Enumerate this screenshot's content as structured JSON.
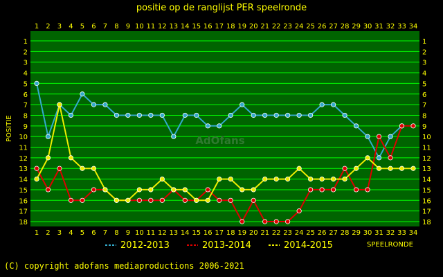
{
  "title": "positie op de ranglijst PER speelronde",
  "copyright": "(C) copyright adofans mediaproductions 2006-2021",
  "watermark": "AdOfans",
  "colors": {
    "background": "#000000",
    "plot_bg": "#006400",
    "grid": "#00ff00",
    "text": "#ffff00",
    "series_2012": "#33aacc",
    "series_2013": "#dd0000",
    "series_2014": "#eeee00"
  },
  "chart_data": {
    "type": "line",
    "title": "positie op de ranglijst PER speelronde",
    "xlabel": "SPEELRONDE",
    "ylabel": "POSITIE",
    "x": [
      1,
      2,
      3,
      4,
      5,
      6,
      7,
      8,
      9,
      10,
      11,
      12,
      13,
      14,
      15,
      16,
      17,
      18,
      19,
      20,
      21,
      22,
      23,
      24,
      25,
      26,
      27,
      28,
      29,
      30,
      31,
      32,
      33,
      34
    ],
    "ylim": [
      1,
      18
    ],
    "y_inverted": true,
    "grid": true,
    "legend_position": "bottom",
    "series": [
      {
        "name": "2012-2013",
        "values": [
          5,
          10,
          7,
          8,
          6,
          7,
          7,
          8,
          8,
          8,
          8,
          8,
          10,
          8,
          8,
          9,
          9,
          8,
          7,
          8,
          8,
          8,
          8,
          8,
          8,
          7,
          7,
          8,
          9,
          10,
          12,
          10,
          9,
          null
        ]
      },
      {
        "name": "2013-2014",
        "values": [
          13,
          15,
          13,
          16,
          16,
          15,
          15,
          16,
          16,
          16,
          16,
          16,
          15,
          16,
          16,
          15,
          16,
          16,
          18,
          16,
          18,
          18,
          18,
          17,
          15,
          15,
          15,
          13,
          15,
          15,
          10,
          12,
          9,
          9
        ]
      },
      {
        "name": "2014-2015",
        "values": [
          14,
          12,
          7,
          12,
          13,
          13,
          15,
          16,
          16,
          15,
          15,
          14,
          15,
          15,
          16,
          16,
          14,
          14,
          15,
          15,
          14,
          14,
          14,
          13,
          14,
          14,
          14,
          14,
          13,
          12,
          13,
          13,
          13,
          13
        ]
      }
    ]
  }
}
